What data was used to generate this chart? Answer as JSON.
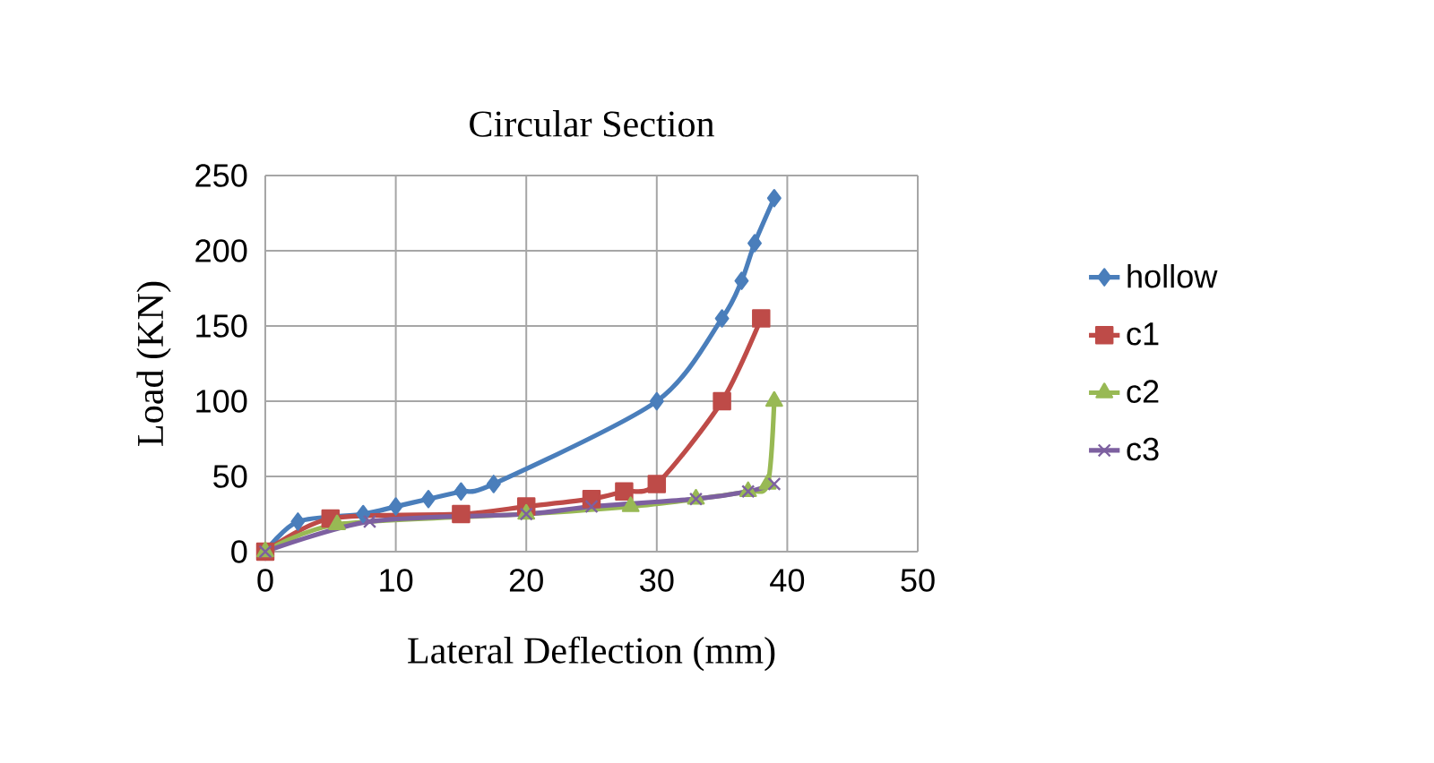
{
  "chart_data": {
    "type": "line",
    "title": "Circular Section",
    "xlabel": "Lateral Deflection (mm)",
    "ylabel": "Load (KN)",
    "xlim": [
      0,
      50
    ],
    "xticks": [
      0,
      10,
      20,
      30,
      40,
      50
    ],
    "ylim": [
      0,
      250
    ],
    "yticks": [
      0,
      50,
      100,
      150,
      200,
      250
    ],
    "grid": true,
    "legend": "right",
    "series": [
      {
        "name": "hollow",
        "color": "#4a7ebb",
        "marker": "diamond",
        "x": [
          0,
          2.5,
          7.5,
          10,
          12.5,
          15,
          17.5,
          30,
          35,
          36.5,
          37.5,
          39
        ],
        "values": [
          0,
          20,
          25,
          30,
          35,
          40,
          45,
          100,
          155,
          180,
          205,
          235
        ]
      },
      {
        "name": "c1",
        "color": "#be4b48",
        "marker": "square",
        "x": [
          0,
          5,
          15,
          20,
          25,
          27.5,
          30,
          35,
          38
        ],
        "values": [
          0,
          22,
          25,
          30,
          35,
          40,
          45,
          100,
          155
        ]
      },
      {
        "name": "c2",
        "color": "#98b954",
        "marker": "triangle",
        "x": [
          0,
          5.5,
          20,
          28,
          33,
          37,
          38.5,
          39
        ],
        "values": [
          0,
          18,
          25,
          30,
          35,
          40,
          45,
          100
        ]
      },
      {
        "name": "c3",
        "color": "#7d60a0",
        "marker": "cross",
        "x": [
          0,
          8,
          20,
          25,
          33,
          37,
          39
        ],
        "values": [
          0,
          20,
          25,
          30,
          35,
          40,
          45
        ]
      }
    ]
  }
}
